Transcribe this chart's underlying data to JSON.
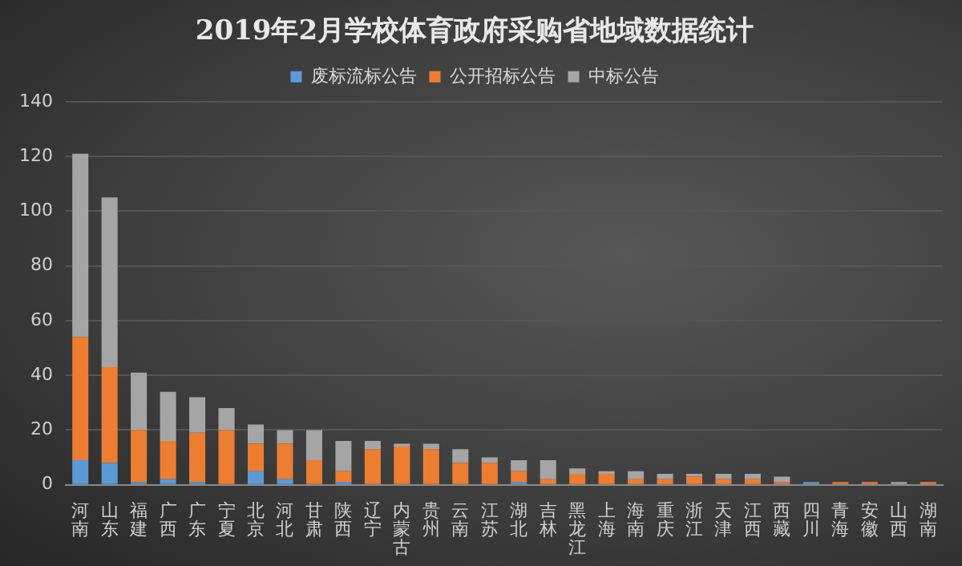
{
  "chart_data": {
    "type": "bar",
    "title": "2019年2月学校体育政府采购省地域数据统计",
    "stacked": true,
    "legend": "top",
    "grid": "y",
    "categories": [
      "河南",
      "山东",
      "福建",
      "广西",
      "广东",
      "宁夏",
      "北京",
      "河北",
      "甘肃",
      "陕西",
      "辽宁",
      "内蒙古",
      "贵州",
      "云南",
      "江苏",
      "湖北",
      "吉林",
      "黑龙江",
      "上海",
      "海南",
      "重庆",
      "浙江",
      "天津",
      "江西",
      "西藏",
      "四川",
      "青海",
      "安徽",
      "山西",
      "湖南"
    ],
    "ylim": [
      0,
      140
    ],
    "yticks": [
      0,
      20,
      40,
      60,
      80,
      100,
      120,
      140
    ],
    "series": [
      {
        "name": "废标流标公告",
        "color": "#5b9bd5",
        "values": [
          9,
          8,
          1,
          2,
          1,
          0,
          5,
          2,
          0,
          1,
          0,
          0,
          0,
          0,
          0,
          1,
          0,
          0,
          0,
          0,
          0,
          0,
          0,
          0,
          0,
          1,
          0,
          0,
          0,
          0
        ]
      },
      {
        "name": "公开招标公告",
        "color": "#ed7d31",
        "values": [
          45,
          35,
          19,
          14,
          18,
          20,
          10,
          13,
          9,
          4,
          13,
          14,
          13,
          8,
          8,
          4,
          2,
          4,
          4,
          2,
          2,
          3,
          2,
          2,
          1,
          0,
          1,
          1,
          0,
          1
        ]
      },
      {
        "name": "中标公告",
        "color": "#a5a5a5",
        "values": [
          67,
          62,
          21,
          18,
          13,
          8,
          7,
          5,
          11,
          11,
          3,
          1,
          2,
          5,
          2,
          4,
          7,
          2,
          1,
          3,
          2,
          1,
          2,
          2,
          2,
          0,
          0,
          0,
          1,
          0
        ]
      }
    ]
  }
}
